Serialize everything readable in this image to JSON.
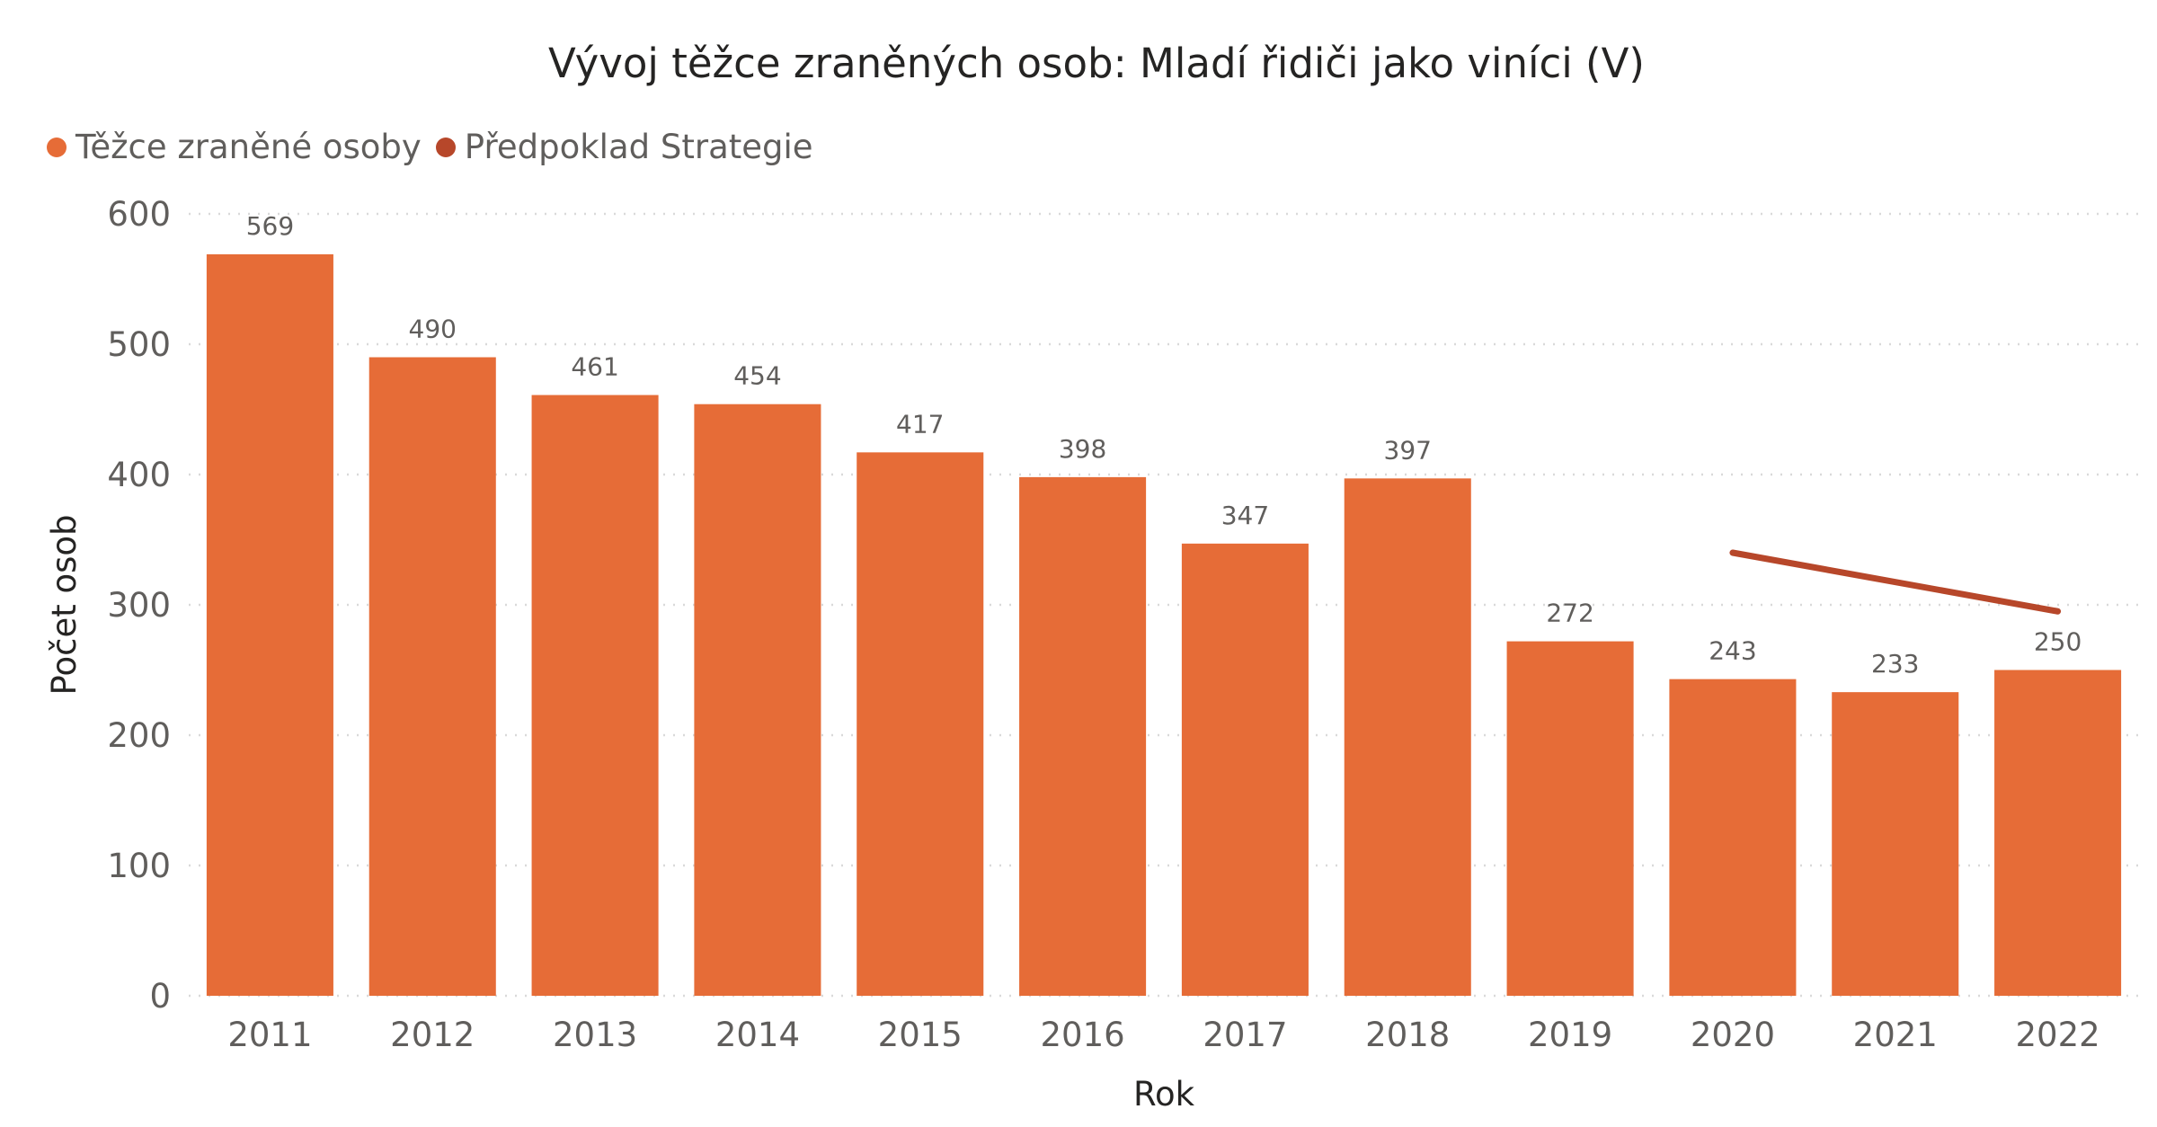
{
  "chart_data": {
    "type": "bar",
    "title": "Vývoj těžce zraněných osob: Mladí řidiči jako viníci (V)",
    "xlabel": "Rok",
    "ylabel": "Počet osob",
    "ylim": [
      0,
      600
    ],
    "yticks": [
      0,
      100,
      200,
      300,
      400,
      500,
      600
    ],
    "grid": true,
    "legend_position": "top-left",
    "categories": [
      "2011",
      "2012",
      "2013",
      "2014",
      "2015",
      "2016",
      "2017",
      "2018",
      "2019",
      "2020",
      "2021",
      "2022"
    ],
    "series": [
      {
        "name": "Těžce zraněné osoby",
        "type": "bar",
        "color": "#E66C37",
        "values": [
          569,
          490,
          461,
          454,
          417,
          398,
          347,
          397,
          272,
          243,
          233,
          250
        ]
      },
      {
        "name": "Předpoklad Strategie",
        "type": "line",
        "color": "#B7472A",
        "points": [
          {
            "x": "2020",
            "y": 340
          },
          {
            "x": "2022",
            "y": 295
          }
        ]
      }
    ]
  }
}
